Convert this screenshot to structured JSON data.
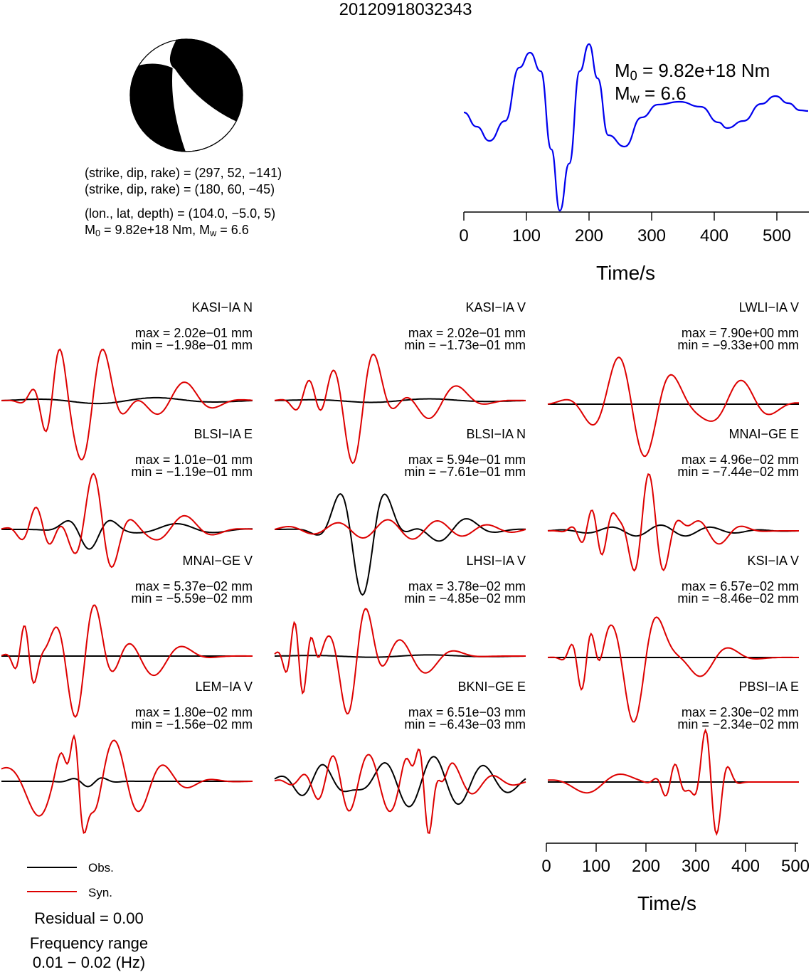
{
  "title": "20120918032343",
  "source_info": {
    "plane1": "(strike, dip, rake) = (297, 52, −141)",
    "plane2": "(strike, dip, rake) = (180, 60, −45)",
    "location": "(lon., lat, depth) = (104.0, −5.0, 5)",
    "moment_prefix": "M",
    "moment_sub": "0",
    "moment_mid": " = 9.82e+18 Nm, M",
    "magnitude_sub": "w",
    "magnitude_val": " = 6.6"
  },
  "stf": {
    "m0_label": "M",
    "m0_sub": "0",
    "m0_value": " = 9.82e+18 Nm",
    "mw_label": "M",
    "mw_sub": "w",
    "mw_value": " = 6.6",
    "xlabel": "Time/s",
    "ticks": [
      "0",
      "100",
      "200",
      "300",
      "400",
      "500"
    ],
    "color": "#0000ee"
  },
  "waveform_axis": {
    "xlabel": "Time/s",
    "ticks": [
      "0",
      "100",
      "200",
      "300",
      "400",
      "500"
    ]
  },
  "colors": {
    "obs": "#000000",
    "syn": "#dd0000"
  },
  "panels": [
    {
      "title": "KASI−IA N",
      "max": "max = 2.02e−01 mm",
      "min": "min = −1.98e−01 mm"
    },
    {
      "title": "KASI−IA V",
      "max": "max = 2.02e−01 mm",
      "min": "min = −1.73e−01 mm"
    },
    {
      "title": "LWLI−IA V",
      "max": "max = 7.90e+00 mm",
      "min": "min = −9.33e+00 mm"
    },
    {
      "title": "BLSI−IA E",
      "max": "max = 1.01e−01 mm",
      "min": "min = −1.19e−01 mm"
    },
    {
      "title": "BLSI−IA N",
      "max": "max = 5.94e−01 mm",
      "min": "min = −7.61e−01 mm"
    },
    {
      "title": "MNAI−GE E",
      "max": "max = 4.96e−02 mm",
      "min": "min = −7.44e−02 mm"
    },
    {
      "title": "MNAI−GE V",
      "max": "max = 5.37e−02 mm",
      "min": "min = −5.59e−02 mm"
    },
    {
      "title": "LHSI−IA V",
      "max": "max = 3.78e−02 mm",
      "min": "min = −4.85e−02 mm"
    },
    {
      "title": "KSI−IA V",
      "max": "max = 6.57e−02 mm",
      "min": "min = −8.46e−02 mm"
    },
    {
      "title": "LEM−IA V",
      "max": "max = 1.80e−02 mm",
      "min": "min = −1.56e−02 mm"
    },
    {
      "title": "BKNI−GE E",
      "max": "max = 6.51e−03 mm",
      "min": "min = −6.43e−03 mm"
    },
    {
      "title": "PBSI−IA E",
      "max": "max = 2.30e−02 mm",
      "min": "min = −2.34e−02 mm"
    }
  ],
  "legend": {
    "obs": "Obs.",
    "syn": "Syn."
  },
  "footer": {
    "residual": "Residual = 0.00",
    "freq_label": "Frequency range",
    "freq_value": "0.01 − 0.02 (Hz)"
  }
}
